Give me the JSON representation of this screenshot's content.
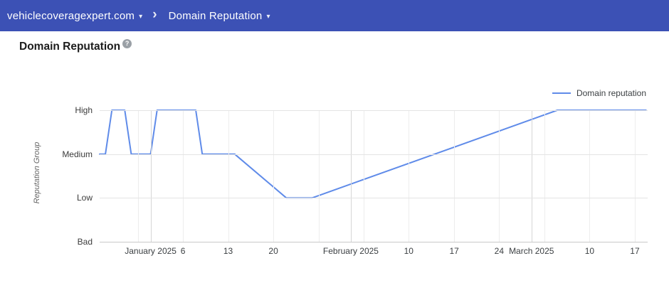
{
  "header": {
    "domain": "vehiclecoveragexpert.com",
    "section": "Domain Reputation",
    "caret_glyph": "▾",
    "separator_glyph": "›"
  },
  "page": {
    "title": "Domain Reputation",
    "help_glyph": "?"
  },
  "legend": {
    "label": "Domain reputation"
  },
  "colors": {
    "header_bg": "#3c51b5",
    "line": "#5f8be9",
    "grid": "#e4e4e4",
    "grid_month": "#d6d6d6"
  },
  "chart_data": {
    "type": "line",
    "title": "Domain Reputation",
    "ylabel": "Reputation Group",
    "legend_position": "top-right",
    "grid": true,
    "y_categories": [
      "High",
      "Medium",
      "Low",
      "Bad"
    ],
    "x_range": [
      "2024-12-24",
      "2025-03-19"
    ],
    "x_ticks": [
      {
        "pos_pct": 7.0,
        "label": "",
        "type": "week",
        "date": "2024-12-30"
      },
      {
        "pos_pct": 9.3,
        "label": "January 2025",
        "type": "month",
        "date": "2025-01-01"
      },
      {
        "pos_pct": 15.2,
        "label": "6",
        "type": "week",
        "date": "2025-01-06"
      },
      {
        "pos_pct": 23.45,
        "label": "13",
        "type": "week",
        "date": "2025-01-13"
      },
      {
        "pos_pct": 31.7,
        "label": "20",
        "type": "week",
        "date": "2025-01-20"
      },
      {
        "pos_pct": 39.94,
        "label": "",
        "type": "week",
        "date": "2025-01-27"
      },
      {
        "pos_pct": 45.84,
        "label": "February 2025",
        "type": "month",
        "date": "2025-02-01"
      },
      {
        "pos_pct": 48.2,
        "label": "",
        "type": "week",
        "date": "2025-02-03"
      },
      {
        "pos_pct": 56.4,
        "label": "10",
        "type": "week",
        "date": "2025-02-10"
      },
      {
        "pos_pct": 64.7,
        "label": "17",
        "type": "week",
        "date": "2025-02-17"
      },
      {
        "pos_pct": 72.9,
        "label": "24",
        "type": "week",
        "date": "2025-02-24"
      },
      {
        "pos_pct": 78.8,
        "label": "March 2025",
        "type": "month",
        "date": "2025-03-01"
      },
      {
        "pos_pct": 81.2,
        "label": "",
        "type": "week",
        "date": "2025-03-03"
      },
      {
        "pos_pct": 89.4,
        "label": "10",
        "type": "week",
        "date": "2025-03-10"
      },
      {
        "pos_pct": 97.66,
        "label": "17",
        "type": "week",
        "date": "2025-03-17"
      }
    ],
    "series": [
      {
        "name": "Domain reputation",
        "color": "#5f8be9",
        "points": [
          {
            "date": "2024-12-24",
            "level": "Medium",
            "x_pct": 0
          },
          {
            "date": "2024-12-25",
            "level": "Medium",
            "x_pct": 1.05
          },
          {
            "date": "2024-12-26",
            "level": "High",
            "x_pct": 2.23
          },
          {
            "date": "2024-12-28",
            "level": "High",
            "x_pct": 4.58
          },
          {
            "date": "2024-12-29",
            "level": "Medium",
            "x_pct": 5.76
          },
          {
            "date": "2025-01-01",
            "level": "Medium",
            "x_pct": 9.3
          },
          {
            "date": "2025-01-02",
            "level": "High",
            "x_pct": 10.48
          },
          {
            "date": "2025-01-08",
            "level": "High",
            "x_pct": 17.55
          },
          {
            "date": "2025-01-09",
            "level": "Medium",
            "x_pct": 18.73
          },
          {
            "date": "2025-01-14",
            "level": "Medium",
            "x_pct": 24.63
          },
          {
            "date": "2025-01-22",
            "level": "Low",
            "x_pct": 34.06
          },
          {
            "date": "2025-01-26",
            "level": "Low",
            "x_pct": 38.78
          },
          {
            "date": "2025-03-05",
            "level": "High",
            "x_pct": 83.52
          },
          {
            "date": "2025-03-19",
            "level": "High",
            "x_pct": 99.7
          }
        ]
      }
    ]
  }
}
